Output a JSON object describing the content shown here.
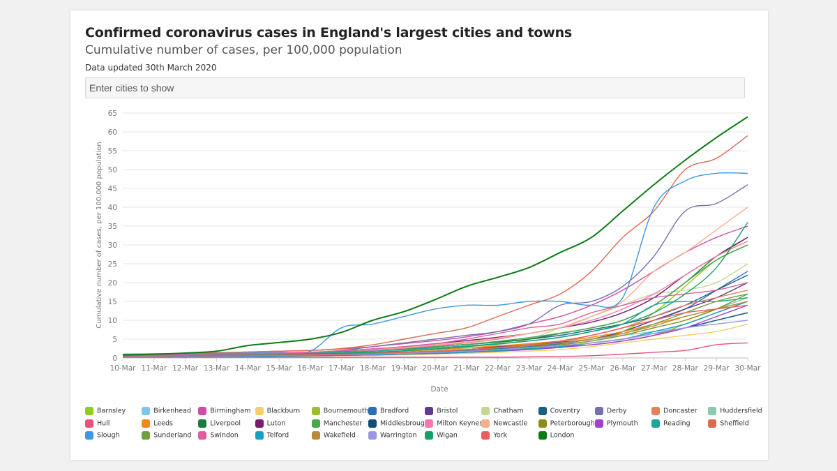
{
  "header": {
    "title": "Confirmed coronavirus cases in England's largest cities and towns",
    "subtitle": "Cumulative number of cases, per 100,000 population",
    "updated": "Data updated 30th March 2020"
  },
  "filter": {
    "placeholder": "Enter cities to show"
  },
  "chart_data": {
    "type": "line",
    "title": "Confirmed coronavirus cases in England's largest cities and towns",
    "subtitle": "Cumulative number of cases, per 100,000 population",
    "xlabel": "Date",
    "ylabel": "Cumulative number of cases, per 100,000 population",
    "x": [
      "10-Mar",
      "11-Mar",
      "12-Mar",
      "13-Mar",
      "14-Mar",
      "15-Mar",
      "16-Mar",
      "17-Mar",
      "18-Mar",
      "19-Mar",
      "20-Mar",
      "21-Mar",
      "22-Mar",
      "23-Mar",
      "24-Mar",
      "25-Mar",
      "26-Mar",
      "27-Mar",
      "28-Mar",
      "29-Mar",
      "30-Mar"
    ],
    "ylim": [
      0,
      65
    ],
    "yticks": [
      0,
      5,
      10,
      15,
      20,
      25,
      30,
      35,
      40,
      45,
      50,
      55,
      60,
      65
    ],
    "grid": true,
    "legend_position": "bottom",
    "series": [
      {
        "name": "Barnsley",
        "color": "#8fce18",
        "values": [
          0.5,
          0.5,
          0.5,
          0.5,
          0.6,
          0.6,
          0.7,
          0.8,
          1,
          1.2,
          1.5,
          2,
          2.5,
          3,
          4,
          5,
          7,
          12,
          19,
          26,
          30
        ]
      },
      {
        "name": "Birkenhead",
        "color": "#7ec4ec",
        "values": [
          0.5,
          0.5,
          0.6,
          0.7,
          0.8,
          0.9,
          1,
          1.2,
          1.5,
          1.8,
          2.2,
          2.6,
          3,
          3.5,
          4,
          5,
          6,
          7,
          8,
          10,
          12
        ]
      },
      {
        "name": "Birmingham",
        "color": "#cf4ea1",
        "values": [
          1,
          1.1,
          1.2,
          1.4,
          1.6,
          1.8,
          2,
          2.4,
          3,
          3.8,
          4.6,
          5.6,
          7,
          9,
          11,
          14,
          18,
          23,
          28,
          32,
          35
        ]
      },
      {
        "name": "Blackburn",
        "color": "#f5cf65",
        "values": [
          0.3,
          0.3,
          0.3,
          0.4,
          0.4,
          0.5,
          0.5,
          0.6,
          0.7,
          0.8,
          1,
          1.2,
          1.5,
          1.8,
          2.2,
          3,
          4,
          5,
          6,
          7,
          9
        ]
      },
      {
        "name": "Bournemouth",
        "color": "#9fbe2e",
        "values": [
          0.4,
          0.4,
          0.5,
          0.5,
          0.6,
          0.6,
          0.7,
          0.8,
          1,
          1.2,
          1.5,
          1.8,
          2,
          2.5,
          3,
          3.5,
          4.5,
          6,
          9,
          12,
          15
        ]
      },
      {
        "name": "Bradford",
        "color": "#2a70b8",
        "values": [
          0.5,
          0.5,
          0.6,
          0.6,
          0.7,
          0.8,
          0.9,
          1,
          1.2,
          1.4,
          1.7,
          2,
          2.4,
          3,
          3.8,
          5,
          7,
          10,
          13,
          18,
          23
        ]
      },
      {
        "name": "Bristol",
        "color": "#5f3a8e",
        "values": [
          0.6,
          0.6,
          0.7,
          0.8,
          0.9,
          1,
          1.1,
          1.3,
          1.5,
          1.8,
          2.2,
          2.6,
          3,
          3.5,
          4.2,
          5,
          7,
          10,
          13,
          16,
          20
        ]
      },
      {
        "name": "Chatham",
        "color": "#c4d98f",
        "values": [
          0.5,
          0.5,
          0.6,
          0.6,
          0.7,
          0.8,
          0.9,
          1,
          1.2,
          1.5,
          2,
          2.5,
          3.5,
          5,
          8,
          11,
          14,
          17,
          18,
          20,
          25
        ]
      },
      {
        "name": "Coventry",
        "color": "#1a5f86",
        "values": [
          0.6,
          0.6,
          0.7,
          0.8,
          0.9,
          1,
          1.2,
          1.5,
          1.9,
          2.4,
          3,
          3.6,
          4.2,
          5,
          6,
          7.5,
          9,
          11,
          14,
          18,
          22
        ]
      },
      {
        "name": "Derby",
        "color": "#7470b3",
        "values": [
          0.8,
          0.8,
          0.9,
          1,
          1.1,
          1.2,
          1.5,
          2,
          3,
          4,
          5,
          6,
          7,
          9,
          14,
          15,
          19,
          27,
          39,
          41,
          46
        ]
      },
      {
        "name": "Doncaster",
        "color": "#e8805a",
        "values": [
          0.5,
          0.5,
          0.6,
          0.6,
          0.7,
          0.8,
          0.9,
          1,
          1.2,
          1.5,
          1.8,
          2.2,
          2.8,
          3.5,
          4.5,
          6,
          8,
          11,
          14,
          16,
          18
        ]
      },
      {
        "name": "Huddersfield",
        "color": "#8cc9ae",
        "values": [
          0.5,
          0.5,
          0.5,
          0.6,
          0.6,
          0.7,
          0.8,
          0.9,
          1,
          1.2,
          1.5,
          1.8,
          2.2,
          2.8,
          3.5,
          4.5,
          6,
          8,
          10,
          13,
          16
        ]
      },
      {
        "name": "Hull",
        "color": "#e8527a",
        "values": [
          0.2,
          0.2,
          0.2,
          0.2,
          0.2,
          0.2,
          0.2,
          0.2,
          0.2,
          0.2,
          0.2,
          0.2,
          0.2,
          0.3,
          0.4,
          0.6,
          1,
          1.5,
          2,
          3.5,
          4
        ]
      },
      {
        "name": "Leeds",
        "color": "#ef8c13",
        "values": [
          0.6,
          0.6,
          0.7,
          0.8,
          0.9,
          1,
          1.1,
          1.3,
          1.5,
          1.8,
          2.2,
          2.7,
          3.2,
          3.8,
          4.5,
          5.5,
          7,
          9,
          11,
          13,
          15
        ]
      },
      {
        "name": "Liverpool",
        "color": "#1a7a3c",
        "values": [
          0.6,
          0.7,
          0.8,
          0.9,
          1,
          1.2,
          1.4,
          1.7,
          2,
          2.5,
          3,
          3.6,
          4.2,
          5,
          6.5,
          8,
          10,
          14,
          20,
          27,
          32
        ]
      },
      {
        "name": "Luton",
        "color": "#7a1b6c",
        "values": [
          0.7,
          0.8,
          0.9,
          1,
          1.1,
          1.3,
          1.5,
          1.9,
          2.4,
          3,
          3.8,
          4.6,
          5.5,
          6.5,
          8,
          9.5,
          12,
          16,
          22,
          27,
          32
        ]
      },
      {
        "name": "Manchester",
        "color": "#4aa64a",
        "values": [
          0.5,
          0.6,
          0.7,
          0.8,
          0.9,
          1.1,
          1.3,
          1.6,
          2,
          2.5,
          3,
          3.6,
          4.4,
          5.4,
          6.6,
          8,
          10,
          14,
          20,
          26,
          30
        ]
      },
      {
        "name": "Middlesbrough",
        "color": "#114c75",
        "values": [
          0.3,
          0.3,
          0.3,
          0.4,
          0.4,
          0.5,
          0.6,
          0.7,
          0.8,
          1,
          1.2,
          1.5,
          1.9,
          2.4,
          3,
          4,
          5,
          6.5,
          8,
          10,
          12
        ]
      },
      {
        "name": "Milton Keynes",
        "color": "#f27aaf",
        "values": [
          0.6,
          0.6,
          0.7,
          0.8,
          0.9,
          1,
          1.2,
          1.5,
          2,
          2.6,
          3.3,
          4,
          5,
          6.5,
          8,
          10,
          13,
          17,
          22,
          27,
          31
        ]
      },
      {
        "name": "Newcastle",
        "color": "#f5b08c",
        "values": [
          0.8,
          0.9,
          1,
          1.1,
          1.2,
          1.4,
          1.6,
          1.9,
          2.3,
          2.8,
          3.5,
          4.3,
          5.3,
          6.5,
          8,
          11,
          15,
          23,
          28,
          34,
          40
        ]
      },
      {
        "name": "Peterborough",
        "color": "#8a8f1a",
        "values": [
          0.4,
          0.4,
          0.5,
          0.5,
          0.6,
          0.6,
          0.7,
          0.8,
          1,
          1.2,
          1.5,
          1.8,
          2.2,
          2.8,
          3.5,
          4.5,
          6,
          8,
          10,
          13,
          17
        ]
      },
      {
        "name": "Plymouth",
        "color": "#a23fcb",
        "values": [
          0.4,
          0.4,
          0.4,
          0.5,
          0.5,
          0.6,
          0.6,
          0.7,
          0.8,
          1,
          1.2,
          1.5,
          1.8,
          2.2,
          2.8,
          3.5,
          4.5,
          6,
          8,
          11,
          14
        ]
      },
      {
        "name": "Reading",
        "color": "#1ca59a",
        "values": [
          0.6,
          0.6,
          0.7,
          0.8,
          0.9,
          1,
          1.2,
          1.5,
          1.8,
          2.2,
          2.7,
          3.2,
          3.8,
          4.5,
          5.5,
          7,
          9,
          14,
          15,
          15,
          16
        ]
      },
      {
        "name": "Sheffield",
        "color": "#dc6a50",
        "values": [
          1,
          1.1,
          1.2,
          1.4,
          1.6,
          1.8,
          2,
          2.5,
          3.5,
          5,
          6.5,
          8,
          11,
          14,
          17,
          23,
          32,
          39,
          50,
          53,
          59
        ]
      },
      {
        "name": "Slough",
        "color": "#3c98e0",
        "values": [
          1,
          1,
          1.1,
          1.2,
          1.3,
          1.5,
          1.8,
          8,
          9,
          11,
          13,
          14,
          14,
          15,
          15,
          14,
          16,
          40,
          47,
          49,
          49
        ]
      },
      {
        "name": "Sunderland",
        "color": "#6ea03e",
        "values": [
          0.5,
          0.5,
          0.6,
          0.6,
          0.7,
          0.8,
          0.9,
          1,
          1.2,
          1.5,
          1.8,
          2.2,
          2.7,
          3.3,
          4,
          5,
          6.5,
          9,
          12,
          15,
          17
        ]
      },
      {
        "name": "Swindon",
        "color": "#dc5fa0",
        "values": [
          0.7,
          0.8,
          0.9,
          1,
          1.1,
          1.3,
          1.5,
          1.9,
          2.4,
          3,
          3.8,
          5,
          6.5,
          8,
          9,
          12,
          14,
          16,
          17,
          18,
          20
        ]
      },
      {
        "name": "Telford",
        "color": "#14a0c4",
        "values": [
          0.3,
          0.3,
          0.3,
          0.4,
          0.4,
          0.5,
          0.6,
          0.7,
          0.8,
          1,
          1.2,
          1.5,
          1.9,
          2.4,
          3,
          4,
          5,
          7,
          9,
          12,
          15
        ]
      },
      {
        "name": "Wakefield",
        "color": "#b88a3a",
        "values": [
          0.5,
          0.5,
          0.6,
          0.6,
          0.7,
          0.8,
          0.9,
          1,
          1.2,
          1.5,
          1.8,
          2.2,
          2.7,
          3.3,
          4,
          5,
          6.5,
          8.5,
          11,
          13,
          15
        ]
      },
      {
        "name": "Warrington",
        "color": "#9b97e0",
        "values": [
          0.4,
          0.4,
          0.5,
          0.5,
          0.6,
          0.7,
          0.8,
          0.9,
          1,
          1.2,
          1.5,
          1.8,
          2.2,
          2.7,
          3.3,
          4,
          5,
          6.5,
          8,
          9,
          10
        ]
      },
      {
        "name": "Wigan",
        "color": "#14a06a",
        "values": [
          0.5,
          0.5,
          0.6,
          0.7,
          0.8,
          0.9,
          1,
          1.2,
          1.5,
          1.9,
          2.4,
          3,
          3.7,
          4.5,
          5.5,
          7,
          9,
          12,
          17,
          24,
          36
        ]
      },
      {
        "name": "York",
        "color": "#e85d5d",
        "values": [
          0.5,
          0.5,
          0.6,
          0.6,
          0.7,
          0.8,
          0.9,
          1,
          1.2,
          1.5,
          1.8,
          2.2,
          2.8,
          3.5,
          4.5,
          6,
          8,
          10,
          12,
          13,
          14
        ]
      },
      {
        "name": "London",
        "color": "#0e7a14",
        "values": [
          0.8,
          1.0,
          1.3,
          1.8,
          3.3,
          4.1,
          5.0,
          6.8,
          10.0,
          12.3,
          15.5,
          19.0,
          21.4,
          24.0,
          28.0,
          32.0,
          39.0,
          46.0,
          52.5,
          58.5,
          64.0
        ]
      }
    ]
  }
}
